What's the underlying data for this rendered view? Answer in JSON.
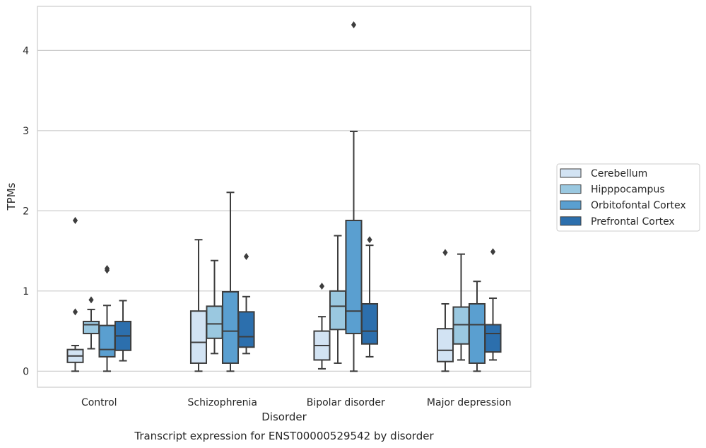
{
  "chart_data": {
    "type": "box",
    "title": "Transcript expression for ENST00000529542 by disorder",
    "xlabel": "Disorder",
    "ylabel": "TPMs",
    "ylim": [
      -0.2,
      4.55
    ],
    "yticks": [
      0,
      1,
      2,
      3,
      4
    ],
    "grid": "horizontal",
    "legend_position": "right",
    "categories": [
      "Control",
      "Schizophrenia",
      "Bipolar disorder",
      "Major depression"
    ],
    "series": [
      {
        "name": "Cerebellum",
        "color": "#d2e3f3",
        "boxes": [
          {
            "whisker_low": 0.0,
            "q1": 0.11,
            "median": 0.19,
            "q3": 0.27,
            "whisker_high": 0.32,
            "outliers": [
              0.74,
              1.88
            ]
          },
          {
            "whisker_low": 0.0,
            "q1": 0.1,
            "median": 0.36,
            "q3": 0.75,
            "whisker_high": 1.64,
            "outliers": []
          },
          {
            "whisker_low": 0.03,
            "q1": 0.14,
            "median": 0.32,
            "q3": 0.5,
            "whisker_high": 0.68,
            "outliers": [
              1.06
            ]
          },
          {
            "whisker_low": 0.0,
            "q1": 0.12,
            "median": 0.26,
            "q3": 0.53,
            "whisker_high": 0.84,
            "outliers": [
              1.48
            ]
          }
        ]
      },
      {
        "name": "Hipppocampus",
        "color": "#9ac8e0",
        "boxes": [
          {
            "whisker_low": 0.28,
            "q1": 0.47,
            "median": 0.58,
            "q3": 0.62,
            "whisker_high": 0.77,
            "outliers": [
              0.89
            ]
          },
          {
            "whisker_low": 0.22,
            "q1": 0.41,
            "median": 0.59,
            "q3": 0.81,
            "whisker_high": 1.38,
            "outliers": []
          },
          {
            "whisker_low": 0.1,
            "q1": 0.52,
            "median": 0.81,
            "q3": 1.0,
            "whisker_high": 1.69,
            "outliers": []
          },
          {
            "whisker_low": 0.14,
            "q1": 0.34,
            "median": 0.58,
            "q3": 0.8,
            "whisker_high": 1.46,
            "outliers": []
          }
        ]
      },
      {
        "name": "Orbitofontal Cortex",
        "color": "#5a9fd0",
        "boxes": [
          {
            "whisker_low": 0.0,
            "q1": 0.18,
            "median": 0.27,
            "q3": 0.57,
            "whisker_high": 0.82,
            "outliers": [
              1.26,
              1.28
            ]
          },
          {
            "whisker_low": 0.0,
            "q1": 0.1,
            "median": 0.5,
            "q3": 0.99,
            "whisker_high": 2.23,
            "outliers": []
          },
          {
            "whisker_low": 0.0,
            "q1": 0.47,
            "median": 0.75,
            "q3": 1.88,
            "whisker_high": 2.99,
            "outliers": [
              4.32
            ]
          },
          {
            "whisker_low": 0.0,
            "q1": 0.1,
            "median": 0.58,
            "q3": 0.84,
            "whisker_high": 1.12,
            "outliers": []
          }
        ]
      },
      {
        "name": "Prefrontal Cortex",
        "color": "#2c6fad",
        "boxes": [
          {
            "whisker_low": 0.13,
            "q1": 0.26,
            "median": 0.44,
            "q3": 0.62,
            "whisker_high": 0.88,
            "outliers": []
          },
          {
            "whisker_low": 0.22,
            "q1": 0.3,
            "median": 0.43,
            "q3": 0.74,
            "whisker_high": 0.93,
            "outliers": [
              1.43
            ]
          },
          {
            "whisker_low": 0.18,
            "q1": 0.34,
            "median": 0.5,
            "q3": 0.84,
            "whisker_high": 1.57,
            "outliers": [
              1.64
            ]
          },
          {
            "whisker_low": 0.14,
            "q1": 0.24,
            "median": 0.47,
            "q3": 0.58,
            "whisker_high": 0.91,
            "outliers": [
              1.49
            ]
          }
        ]
      }
    ]
  }
}
